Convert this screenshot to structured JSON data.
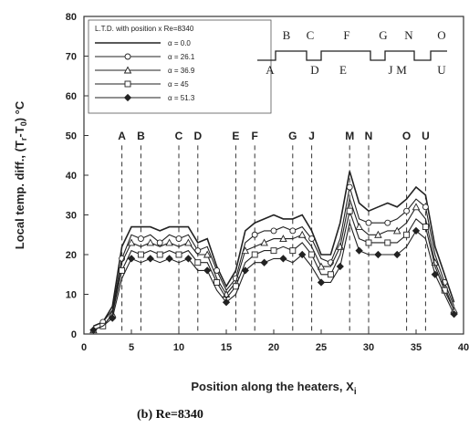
{
  "chart_data": {
    "type": "line",
    "xlabel": "Position along the heaters, X",
    "xlabel_sub": "i",
    "ylabel": "Local temp. diff., (T",
    "ylabel_sub1": "r",
    "ylabel_mid": "-T",
    "ylabel_sub2": "0",
    "ylabel_end": ") °C",
    "caption": "(b)  Re=8340",
    "xlim": [
      0,
      40
    ],
    "ylim": [
      0,
      80
    ],
    "xticks": [
      0,
      5,
      10,
      15,
      20,
      25,
      30,
      35,
      40
    ],
    "yticks": [
      0,
      10,
      20,
      30,
      40,
      50,
      60,
      70,
      80
    ],
    "grid": false,
    "legend_title": "L.T.D. with position x  Re=8340",
    "legend_position": "top-left",
    "heater_lines": [
      {
        "label": "A",
        "x": 4
      },
      {
        "label": "B",
        "x": 6
      },
      {
        "label": "C",
        "x": 10
      },
      {
        "label": "D",
        "x": 12
      },
      {
        "label": "E",
        "x": 16
      },
      {
        "label": "F",
        "x": 18
      },
      {
        "label": "G",
        "x": 22
      },
      {
        "label": "J",
        "x": 24
      },
      {
        "label": "M",
        "x": 28
      },
      {
        "label": "N",
        "x": 30
      },
      {
        "label": "O",
        "x": 34
      },
      {
        "label": "U",
        "x": 36
      }
    ],
    "diagram_labels_top": [
      "B",
      "C",
      "F",
      "G",
      "N",
      "O"
    ],
    "diagram_labels_bottom": [
      "A",
      "D",
      "E",
      "J",
      "M",
      "U"
    ],
    "x": [
      1,
      2,
      3,
      4,
      5,
      6,
      7,
      8,
      9,
      10,
      11,
      12,
      13,
      14,
      15,
      16,
      17,
      18,
      19,
      20,
      21,
      22,
      23,
      24,
      25,
      26,
      27,
      28,
      29,
      30,
      31,
      32,
      33,
      34,
      35,
      36,
      37,
      38,
      39
    ],
    "series": [
      {
        "name": "α = 0.0",
        "marker": "none",
        "values": [
          2,
          3,
          7,
          22,
          27,
          27,
          27,
          26,
          27,
          27,
          27,
          23,
          24,
          17,
          12,
          16,
          26,
          28,
          29,
          30,
          29,
          29,
          30,
          26,
          20,
          20,
          28,
          41,
          33,
          31,
          32,
          33,
          32,
          34,
          37,
          35,
          22,
          15,
          8
        ]
      },
      {
        "name": "α = 26.1",
        "marker": "circle",
        "values": [
          2,
          3,
          6,
          19,
          25,
          24,
          25,
          23,
          25,
          24,
          25,
          21,
          22,
          16,
          11,
          14,
          23,
          25,
          26,
          26,
          27,
          26,
          27,
          24,
          19,
          18,
          24,
          37,
          29,
          28,
          28,
          28,
          29,
          31,
          34,
          32,
          20,
          13,
          7
        ]
      },
      {
        "name": "α = 36.9",
        "marker": "triangle",
        "values": [
          1,
          2,
          5,
          18,
          23,
          22,
          23,
          22,
          23,
          22,
          23,
          20,
          20,
          14,
          10,
          13,
          21,
          22,
          23,
          24,
          24,
          24,
          25,
          22,
          17,
          17,
          22,
          34,
          27,
          25,
          25,
          26,
          26,
          28,
          32,
          29,
          18,
          12,
          6
        ]
      },
      {
        "name": "α = 45",
        "marker": "square",
        "values": [
          1,
          2,
          5,
          16,
          21,
          20,
          21,
          20,
          21,
          20,
          21,
          18,
          18,
          13,
          9,
          12,
          18,
          20,
          21,
          21,
          22,
          21,
          23,
          20,
          15,
          15,
          20,
          31,
          24,
          23,
          23,
          23,
          23,
          25,
          29,
          27,
          17,
          11,
          6
        ]
      },
      {
        "name": "α = 51.3",
        "marker": "diamond",
        "values": [
          1,
          2,
          4,
          14,
          19,
          18,
          19,
          18,
          19,
          18,
          19,
          16,
          16,
          11,
          8,
          10,
          16,
          18,
          18,
          19,
          19,
          18,
          20,
          17,
          13,
          13,
          17,
          28,
          21,
          20,
          20,
          20,
          20,
          22,
          26,
          24,
          15,
          10,
          5
        ]
      }
    ]
  }
}
